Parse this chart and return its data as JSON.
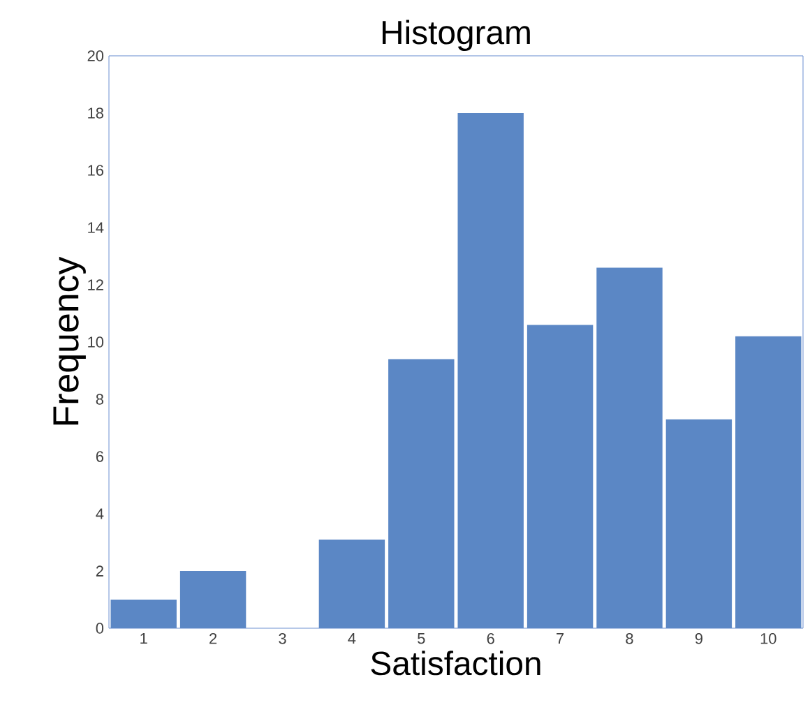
{
  "chart_data": {
    "type": "bar",
    "title": "Histogram",
    "xlabel": "Satisfaction",
    "ylabel": "Frequency",
    "categories": [
      "1",
      "2",
      "3",
      "4",
      "5",
      "6",
      "7",
      "8",
      "9",
      "10"
    ],
    "values": [
      1,
      2,
      0,
      3.1,
      9.4,
      18,
      10.6,
      12.6,
      7.3,
      10.2
    ],
    "color": "#5b87c5",
    "ylim": [
      0,
      20
    ],
    "yticks": [
      0,
      2,
      4,
      6,
      8,
      10,
      12,
      14,
      16,
      18,
      20
    ],
    "grid": false
  }
}
